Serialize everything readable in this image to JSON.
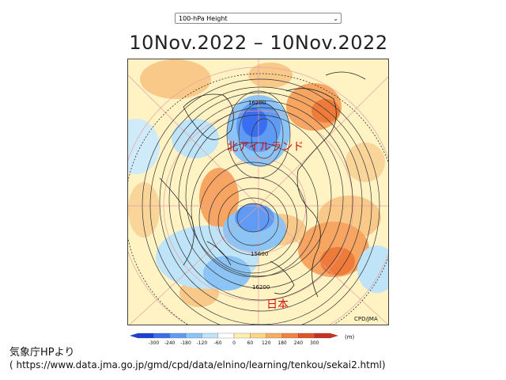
{
  "dropdown": {
    "selected": "100-hPa Height"
  },
  "title": "10Nov.2022 – 10Nov.2022",
  "map": {
    "contour_labels": [
      "16200",
      "15600",
      "16200"
    ],
    "annotation_north_atlantic": "北アイルランド",
    "annotation_japan": "日本",
    "credit": "CPD/JMA"
  },
  "colorbar": {
    "ticks": [
      "-300",
      "-240",
      "-180",
      "-120",
      "-60",
      "0",
      "60",
      "120",
      "180",
      "240",
      "300"
    ],
    "unit": "(m)",
    "colors": [
      "#1c3fd6",
      "#3a6ef0",
      "#5f9af5",
      "#8cc4f6",
      "#bfe4f8",
      "#ffffff",
      "#fff0b0",
      "#fbd58a",
      "#f7ad60",
      "#f18340",
      "#e0532a",
      "#c63020"
    ]
  },
  "source": {
    "line1": "気象庁HPより",
    "line2": "( https://www.data.jma.go.jp/gmd/cpd/data/elnino/learning/tenkou/sekai2.html)"
  }
}
